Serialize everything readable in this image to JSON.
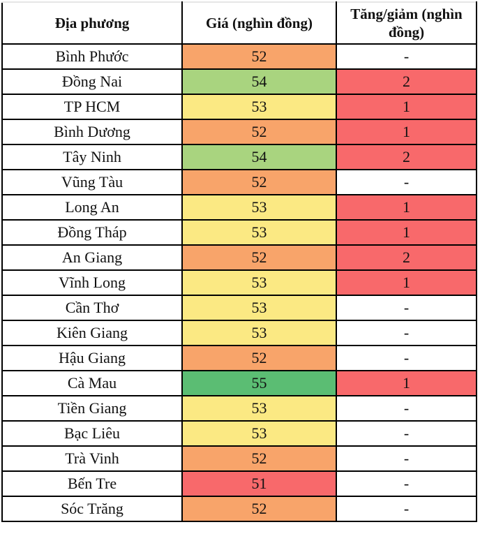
{
  "chart_data": {
    "type": "table",
    "title": "",
    "columns": [
      "Địa phương",
      "Giá (nghìn đồng)",
      "Tăng/giảm (nghìn đồng)"
    ],
    "rows": [
      [
        "Bình Phước",
        52,
        "-"
      ],
      [
        "Đồng Nai",
        54,
        2
      ],
      [
        "TP HCM",
        53,
        1
      ],
      [
        "Bình Dương",
        52,
        1
      ],
      [
        "Tây Ninh",
        54,
        2
      ],
      [
        "Vũng Tàu",
        52,
        "-"
      ],
      [
        "Long An",
        53,
        1
      ],
      [
        "Đồng Tháp",
        53,
        1
      ],
      [
        "An Giang",
        52,
        2
      ],
      [
        "Vĩnh Long",
        53,
        1
      ],
      [
        "Cần Thơ",
        53,
        "-"
      ],
      [
        "Kiên Giang",
        53,
        "-"
      ],
      [
        "Hậu Giang",
        52,
        "-"
      ],
      [
        "Cà Mau",
        55,
        1
      ],
      [
        "Tiền Giang",
        53,
        "-"
      ],
      [
        "Bạc Liêu",
        53,
        "-"
      ],
      [
        "Trà Vinh",
        52,
        "-"
      ],
      [
        "Bến Tre",
        51,
        "-"
      ],
      [
        "Sóc Trăng",
        52,
        "-"
      ]
    ],
    "value_range": [
      51,
      55
    ],
    "color_scale": {
      "51": "#F8696B",
      "52": "#F8A46A",
      "53": "#FBE983",
      "54": "#A9D47F",
      "55": "#5BBD73"
    },
    "change_highlight": "#F8696B",
    "no_change_symbol": "-",
    "layout": {
      "grid": "black cell borders",
      "text_color": "#111111",
      "background": "#ffffff"
    }
  }
}
